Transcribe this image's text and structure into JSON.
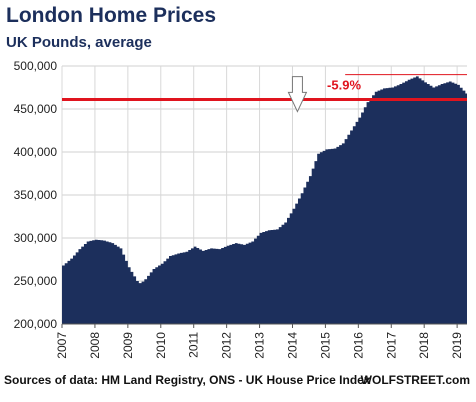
{
  "chart_data": {
    "type": "area",
    "title": "London Home Prices",
    "subtitle": "UK Pounds, average",
    "ylim": [
      200000,
      500000
    ],
    "yticks": [
      "200,000",
      "250,000",
      "300,000",
      "350,000",
      "400,000",
      "450,000",
      "500,000"
    ],
    "ytick_values": [
      200000,
      250000,
      300000,
      350000,
      400000,
      450000,
      500000
    ],
    "xticks": [
      "2007",
      "2008",
      "2009",
      "2010",
      "2011",
      "2012",
      "2013",
      "2014",
      "2015",
      "2016",
      "2017",
      "2018",
      "2019"
    ],
    "xlim": [
      2007.0,
      2019.3
    ],
    "grid": true,
    "fill_color": "#1c2f5c",
    "points": [
      [
        2007.0,
        268000
      ],
      [
        2007.25,
        276000
      ],
      [
        2007.5,
        287000
      ],
      [
        2007.75,
        296000
      ],
      [
        2008.0,
        298000
      ],
      [
        2008.25,
        297000
      ],
      [
        2008.5,
        294000
      ],
      [
        2008.75,
        288000
      ],
      [
        2009.0,
        266000
      ],
      [
        2009.25,
        250000
      ],
      [
        2009.35,
        247000
      ],
      [
        2009.5,
        252000
      ],
      [
        2009.75,
        264000
      ],
      [
        2010.0,
        270000
      ],
      [
        2010.25,
        279000
      ],
      [
        2010.5,
        282000
      ],
      [
        2010.75,
        284000
      ],
      [
        2011.0,
        290000
      ],
      [
        2011.25,
        285000
      ],
      [
        2011.5,
        288000
      ],
      [
        2011.75,
        287000
      ],
      [
        2012.0,
        291000
      ],
      [
        2012.25,
        294000
      ],
      [
        2012.5,
        292000
      ],
      [
        2012.75,
        296000
      ],
      [
        2013.0,
        306000
      ],
      [
        2013.25,
        309000
      ],
      [
        2013.5,
        310000
      ],
      [
        2013.75,
        318000
      ],
      [
        2014.0,
        334000
      ],
      [
        2014.25,
        352000
      ],
      [
        2014.5,
        372000
      ],
      [
        2014.75,
        398000
      ],
      [
        2015.0,
        403000
      ],
      [
        2015.25,
        404000
      ],
      [
        2015.5,
        410000
      ],
      [
        2015.75,
        425000
      ],
      [
        2016.0,
        440000
      ],
      [
        2016.25,
        458000
      ],
      [
        2016.5,
        470000
      ],
      [
        2016.75,
        474000
      ],
      [
        2017.0,
        475000
      ],
      [
        2017.25,
        479000
      ],
      [
        2017.5,
        484000
      ],
      [
        2017.75,
        488000
      ],
      [
        2018.0,
        481000
      ],
      [
        2018.25,
        475000
      ],
      [
        2018.5,
        479000
      ],
      [
        2018.75,
        482000
      ],
      [
        2019.0,
        478000
      ],
      [
        2019.2,
        470000
      ],
      [
        2019.3,
        466000
      ]
    ],
    "annotation": {
      "label": "-5.9%",
      "peak_value": 490000,
      "current_value": 461000,
      "peak_x_start": 2015.6,
      "label_x": 2015.05,
      "arrow_x": 2014.15,
      "color": "#e0141e"
    }
  },
  "footer": {
    "source": "Sources of data: HM Land Registry, ONS - UK House Price Index",
    "brand": "WOLFSTREET.com"
  }
}
